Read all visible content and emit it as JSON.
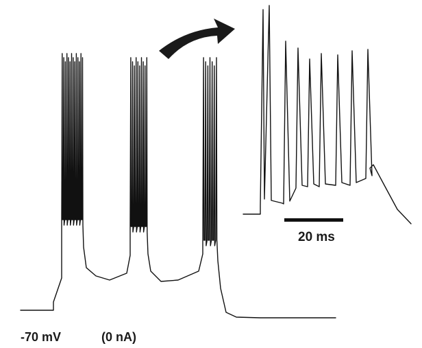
{
  "chart_data": [
    {
      "type": "line",
      "description_kind": "membrane-potential trace",
      "series": [
        {
          "bursts": 3,
          "spikes_per_burst": [
            14,
            10,
            7
          ]
        }
      ],
      "baseline_label": "-70 mV",
      "holding_current_label": "(0 nA)",
      "ylim_mV": [
        -75,
        20
      ]
    },
    {
      "type": "line",
      "description_kind": "expanded inset of one burst",
      "series": [
        {
          "spikes": 8
        }
      ],
      "scale_bar_label": "20 ms"
    }
  ],
  "colors": {
    "trace": "#111111",
    "background": "#ffffff"
  },
  "icons": {
    "arrow": "curved-arrow-icon"
  }
}
